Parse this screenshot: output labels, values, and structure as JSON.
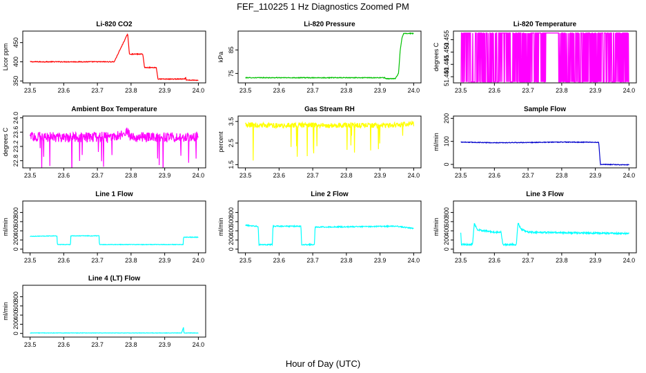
{
  "figure": {
    "title": "FEF_110225  1 Hz Diagnostics Zoomed PM",
    "xlabel": "Hour of Day (UTC)"
  },
  "chart_data": [
    {
      "id": "co2",
      "type": "line",
      "title": "Li-820 CO2",
      "ylabel": "Licor ppm",
      "color": "#ff0000",
      "xlim": [
        23.5,
        24.0
      ],
      "ylim": [
        345,
        480
      ],
      "xticks": [
        23.5,
        23.6,
        23.7,
        23.8,
        23.9,
        24.0
      ],
      "yticks": [
        350,
        400,
        450
      ],
      "noise": 1,
      "series": [
        {
          "name": "CO2",
          "x": [
            23.5,
            23.75,
            23.79,
            23.795,
            23.835,
            23.84,
            23.875,
            23.88,
            23.96,
            23.962,
            23.964,
            24.0
          ],
          "y": [
            400,
            400,
            473,
            420,
            420,
            385,
            385,
            355,
            355,
            360,
            352,
            352
          ]
        }
      ]
    },
    {
      "id": "pressure",
      "type": "line",
      "title": "Li-820 Pressure",
      "ylabel": "kPa",
      "color": "#00c000",
      "xlim": [
        23.5,
        24.0
      ],
      "ylim": [
        71,
        93
      ],
      "xticks": [
        23.5,
        23.6,
        23.7,
        23.8,
        23.9,
        24.0
      ],
      "yticks": [
        75,
        85
      ],
      "noise": 0.15,
      "series": [
        {
          "name": "Pressure",
          "x": [
            23.5,
            23.915,
            23.917,
            23.945,
            23.955,
            23.96,
            23.965,
            23.97,
            24.0
          ],
          "y": [
            73.2,
            73.2,
            72.8,
            72.8,
            75,
            85,
            90,
            92,
            92
          ]
        }
      ]
    },
    {
      "id": "temperature",
      "type": "line",
      "title": "Li-820 Temperature",
      "ylabel": "degrees C",
      "color": "#ff00ff",
      "xlim": [
        23.5,
        24.0
      ],
      "ylim": [
        51.4375,
        51.4585
      ],
      "xticks": [
        23.5,
        23.6,
        23.7,
        23.8,
        23.9,
        24.0
      ],
      "yticks": [
        51.44,
        51.445,
        51.45,
        51.455
      ],
      "ytick_labels": [
        "51.440",
        "51.445",
        "51.450",
        "51.455"
      ],
      "noise": 0,
      "series": [
        {
          "name": "Temperature",
          "x": [
            23.5,
            23.51,
            23.52,
            23.54,
            23.55,
            23.6,
            23.62,
            23.7,
            23.72,
            23.75,
            23.78,
            23.79,
            23.85,
            23.9,
            23.95,
            24.0
          ],
          "y": [
            51.4575,
            51.438,
            51.4575,
            51.44,
            51.4575,
            51.438,
            51.4575,
            51.438,
            51.4575,
            51.438,
            51.4575,
            51.438,
            51.4575,
            51.438,
            51.4575,
            51.438
          ]
        }
      ]
    },
    {
      "id": "ambient",
      "type": "line",
      "title": "Ambient Box Temperature",
      "ylabel": "degrees C",
      "color": "#ff00ff",
      "xlim": [
        23.5,
        24.0
      ],
      "ylim": [
        22.6,
        24.05
      ],
      "xticks": [
        23.5,
        23.6,
        23.7,
        23.8,
        23.9,
        24.0
      ],
      "yticks": [
        22.8,
        23.2,
        23.6,
        24.0
      ],
      "ytick_labels": [
        "22.8",
        "23.2",
        "23.6",
        "24.0"
      ],
      "noise": 0.14,
      "series": [
        {
          "name": "Ambient",
          "x": [
            23.5,
            23.6,
            23.7,
            23.75,
            23.79,
            23.8,
            23.9,
            24.0
          ],
          "y": [
            23.48,
            23.45,
            23.47,
            23.47,
            23.6,
            23.46,
            23.45,
            23.48
          ]
        }
      ]
    },
    {
      "id": "rh",
      "type": "line",
      "title": "Gas Stream RH",
      "ylabel": "percent",
      "color": "#ffff00",
      "xlim": [
        23.5,
        24.0
      ],
      "ylim": [
        1.35,
        3.75
      ],
      "xticks": [
        23.5,
        23.6,
        23.7,
        23.8,
        23.9,
        24.0
      ],
      "yticks": [
        1.5,
        2.5,
        3.5
      ],
      "noise": 0.12,
      "series": [
        {
          "name": "RH",
          "x": [
            23.5,
            23.6,
            23.7,
            23.75,
            23.79,
            23.8,
            23.9,
            24.0
          ],
          "y": [
            3.35,
            3.3,
            3.35,
            3.3,
            3.3,
            3.35,
            3.3,
            3.4
          ]
        }
      ]
    },
    {
      "id": "sample",
      "type": "line",
      "title": "Sample Flow",
      "ylabel": "ml/min",
      "color": "#0000cc",
      "xlim": [
        23.5,
        24.0
      ],
      "ylim": [
        -15,
        210
      ],
      "xticks": [
        23.5,
        23.6,
        23.7,
        23.8,
        23.9,
        24.0
      ],
      "yticks": [
        0,
        100,
        200
      ],
      "noise": 1.5,
      "series": [
        {
          "name": "Sample",
          "x": [
            23.5,
            23.6,
            23.7,
            23.8,
            23.9,
            23.91,
            23.915,
            24.0
          ],
          "y": [
            97,
            94,
            95,
            97,
            96,
            95,
            0,
            -2
          ]
        }
      ]
    },
    {
      "id": "line1",
      "type": "line",
      "title": "Line 1 Flow",
      "ylabel": "ml/min",
      "color": "#00ffff",
      "xlim": [
        23.5,
        24.0
      ],
      "ylim": [
        -80,
        1050
      ],
      "xticks": [
        23.5,
        23.6,
        23.7,
        23.8,
        23.9,
        24.0
      ],
      "yticks": [
        0,
        200,
        400,
        600,
        800
      ],
      "noise": 6,
      "series": [
        {
          "name": "Line 1",
          "x": [
            23.5,
            23.58,
            23.581,
            23.62,
            23.621,
            23.705,
            23.706,
            23.955,
            23.956,
            24.0
          ],
          "y": [
            280,
            290,
            100,
            100,
            290,
            290,
            100,
            100,
            260,
            260
          ]
        }
      ]
    },
    {
      "id": "line2",
      "type": "line",
      "title": "Line 2 Flow",
      "ylabel": "ml/min",
      "color": "#00ffff",
      "xlim": [
        23.5,
        24.0
      ],
      "ylim": [
        -80,
        1050
      ],
      "xticks": [
        23.5,
        23.6,
        23.7,
        23.8,
        23.9,
        24.0
      ],
      "yticks": [
        0,
        200,
        400,
        600,
        800
      ],
      "noise": 12,
      "series": [
        {
          "name": "Line 2",
          "x": [
            23.5,
            23.538,
            23.54,
            23.58,
            23.582,
            23.665,
            23.667,
            23.705,
            23.707,
            23.95,
            24.0
          ],
          "y": [
            520,
            500,
            100,
            100,
            500,
            500,
            100,
            100,
            480,
            500,
            450
          ]
        }
      ]
    },
    {
      "id": "line3",
      "type": "line",
      "title": "Line 3 Flow",
      "ylabel": "ml/min",
      "color": "#00ffff",
      "xlim": [
        23.5,
        24.0
      ],
      "ylim": [
        -80,
        1050
      ],
      "xticks": [
        23.5,
        23.6,
        23.7,
        23.8,
        23.9,
        24.0
      ],
      "yticks": [
        0,
        200,
        400,
        600,
        800
      ],
      "noise": 18,
      "series": [
        {
          "name": "Line 3",
          "x": [
            23.5,
            23.502,
            23.535,
            23.54,
            23.55,
            23.6,
            23.62,
            23.625,
            23.665,
            23.67,
            23.68,
            23.7,
            23.8,
            24.0
          ],
          "y": [
            350,
            100,
            100,
            560,
            420,
            370,
            370,
            100,
            100,
            570,
            430,
            370,
            360,
            340
          ]
        }
      ]
    },
    {
      "id": "line4",
      "type": "line",
      "title": "Line 4 (LT) Flow",
      "ylabel": "ml/min",
      "color": "#00ffff",
      "xlim": [
        23.5,
        24.0
      ],
      "ylim": [
        -80,
        1050
      ],
      "xticks": [
        23.5,
        23.6,
        23.7,
        23.8,
        23.9,
        24.0
      ],
      "yticks": [
        0,
        200,
        400,
        600,
        800
      ],
      "noise": 4,
      "series": [
        {
          "name": "Line 4",
          "x": [
            23.5,
            23.95,
            23.956,
            23.957,
            23.96,
            24.0
          ],
          "y": [
            10,
            10,
            140,
            10,
            10,
            10
          ]
        }
      ]
    }
  ]
}
